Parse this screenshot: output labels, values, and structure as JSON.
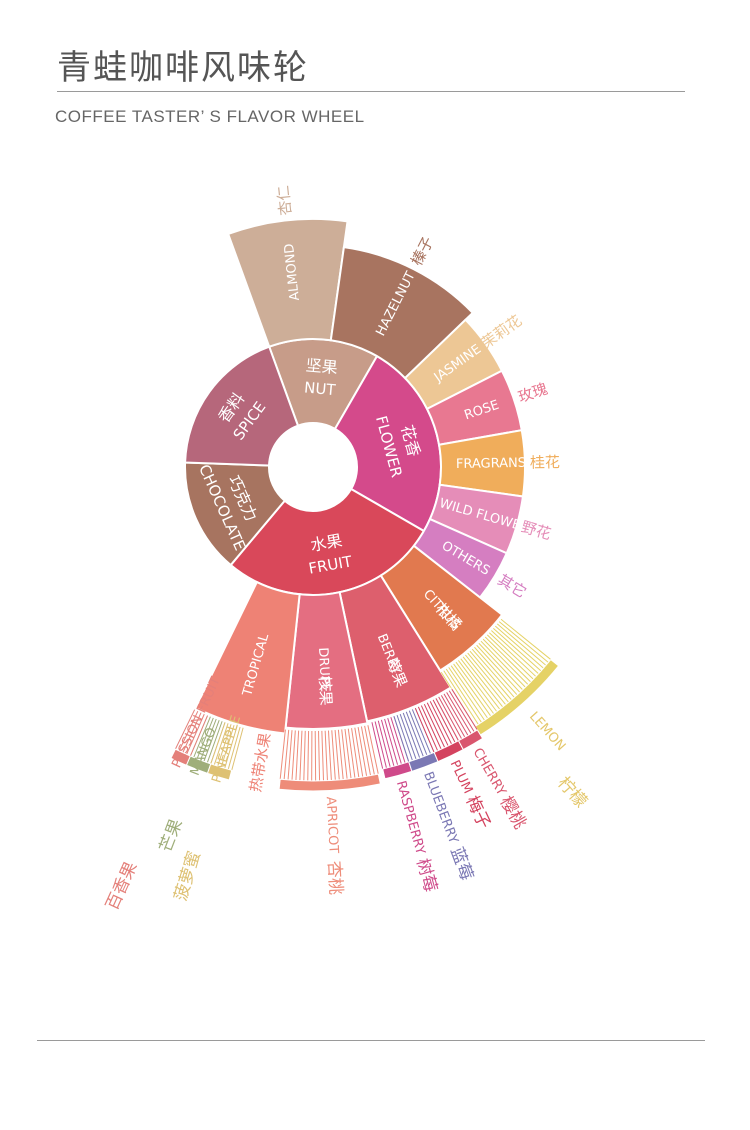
{
  "header": {
    "title": "青蛙咖啡风味轮",
    "subtitle": "COFFEE TASTER’ S FLAVOR WHEEL"
  },
  "wheel": {
    "inner": [
      {
        "id": "nut",
        "zh": "坚果",
        "en": "NUT",
        "a0": -20,
        "a1": 30,
        "color": "#c79c89"
      },
      {
        "id": "flower",
        "zh": "花香",
        "en": "FLOWER",
        "a0": 30,
        "a1": 120,
        "color": "#d44a8b"
      },
      {
        "id": "fruit",
        "zh": "水果",
        "en": "FRUIT",
        "a0": 120,
        "a1": 220,
        "color": "#d9485a"
      },
      {
        "id": "chocolate",
        "zh": "巧克力",
        "en": "CHOCOLATE",
        "a0": 220,
        "a1": 272,
        "color": "#a77460"
      },
      {
        "id": "spice",
        "zh": "香料",
        "en": "SPICE",
        "a0": 272,
        "a1": 340,
        "color": "#b6677b"
      }
    ],
    "nut_outer": [
      {
        "id": "almond",
        "label": "ALMOND",
        "zh": "杏仁",
        "a0": -20,
        "a1": 8,
        "r1": 248,
        "color": "#cdae98"
      },
      {
        "id": "hazelnut",
        "label": "HAZELNUT",
        "zh": "榛子",
        "a0": 8,
        "a1": 46,
        "r1": 222,
        "color": "#a87460"
      }
    ],
    "flower_outer": [
      {
        "id": "jasmine",
        "label": "JASMINE",
        "zh": "茉莉花",
        "a0": 46,
        "a1": 63,
        "r1": 212,
        "color": "#edc795"
      },
      {
        "id": "rose",
        "label": "ROSE",
        "zh": "玫瑰",
        "a0": 63,
        "a1": 80,
        "r1": 212,
        "color": "#e87891"
      },
      {
        "id": "fragrans",
        "label": "FRAGRANS",
        "zh": "桂花",
        "a0": 80,
        "a1": 98,
        "r1": 212,
        "color": "#f0ad5b"
      },
      {
        "id": "wild-flower",
        "label": "WILD FLOWER",
        "zh": "野花",
        "a0": 98,
        "a1": 114,
        "r1": 212,
        "color": "#e58db8"
      },
      {
        "id": "others",
        "label": "OTHERS",
        "zh": "其它",
        "a0": 114,
        "a1": 128,
        "r1": 212,
        "color": "#d57ec1"
      }
    ],
    "fruit_outer": [
      {
        "id": "citrus",
        "label": "CITRUS",
        "zh": "柑橘",
        "a0": 128,
        "a1": 148,
        "r1": 240,
        "color": "#e1794f"
      },
      {
        "id": "berry",
        "label": "BERRY",
        "zh": "莓果",
        "a0": 148,
        "a1": 168,
        "r1": 260,
        "color": "#dd5f6d"
      },
      {
        "id": "drupe",
        "label": "DRUPE",
        "zh": "核果",
        "a0": 168,
        "a1": 186,
        "r1": 262,
        "color": "#e46e81"
      },
      {
        "id": "tropical",
        "label": "TROPICAL",
        "zh": "",
        "a0": 186,
        "a1": 206,
        "r1": 268,
        "color": "#ee8275"
      }
    ],
    "leaves": [
      {
        "id": "lemon",
        "en": "LEMON",
        "zh": "柠檬",
        "a0": 129,
        "a1": 148,
        "r0": 240,
        "r1": 316,
        "color": "#e5d266"
      },
      {
        "id": "raspberry",
        "en": "RASPBERRY",
        "zh": "树莓",
        "a0": 162,
        "a1": 167,
        "r0": 260,
        "r1": 320,
        "color": "#cf4a8a"
      },
      {
        "id": "blueberry",
        "en": "BLUEBERRY",
        "zh": "蓝莓",
        "a0": 157,
        "a1": 162,
        "r0": 260,
        "r1": 320,
        "color": "#7b78b4"
      },
      {
        "id": "plum",
        "en": "PLUM",
        "zh": "梅子",
        "a0": 152,
        "a1": 157,
        "r0": 260,
        "r1": 320,
        "color": "#d4435f"
      },
      {
        "id": "cherry",
        "en": "CHERRY",
        "zh": "樱桃",
        "a0": 148,
        "a1": 152,
        "r0": 260,
        "r1": 320,
        "color": "#d9566e"
      },
      {
        "id": "apricot",
        "en": "APRICOT",
        "zh": "杏桃",
        "a0": 168,
        "a1": 186,
        "r0": 262,
        "r1": 324,
        "color": "#ee8c79"
      },
      {
        "id": "mango",
        "en": "MANGO",
        "zh": "芒果",
        "a0": 199,
        "a1": 203,
        "r0": 268,
        "r1": 324,
        "color": "#9fae7a"
      },
      {
        "id": "pineapple",
        "en": "PINEAPPLE",
        "zh": "菠萝蜜",
        "a0": 195,
        "a1": 199,
        "r0": 268,
        "r1": 324,
        "color": "#dec173"
      },
      {
        "id": "passion-fruit",
        "en": "PASSION FRUIT",
        "zh": "百香果",
        "a0": 203,
        "a1": 206,
        "r0": 268,
        "r1": 324,
        "color": "#e4807a"
      }
    ],
    "fruit_tropical_zh": "热带水果"
  }
}
